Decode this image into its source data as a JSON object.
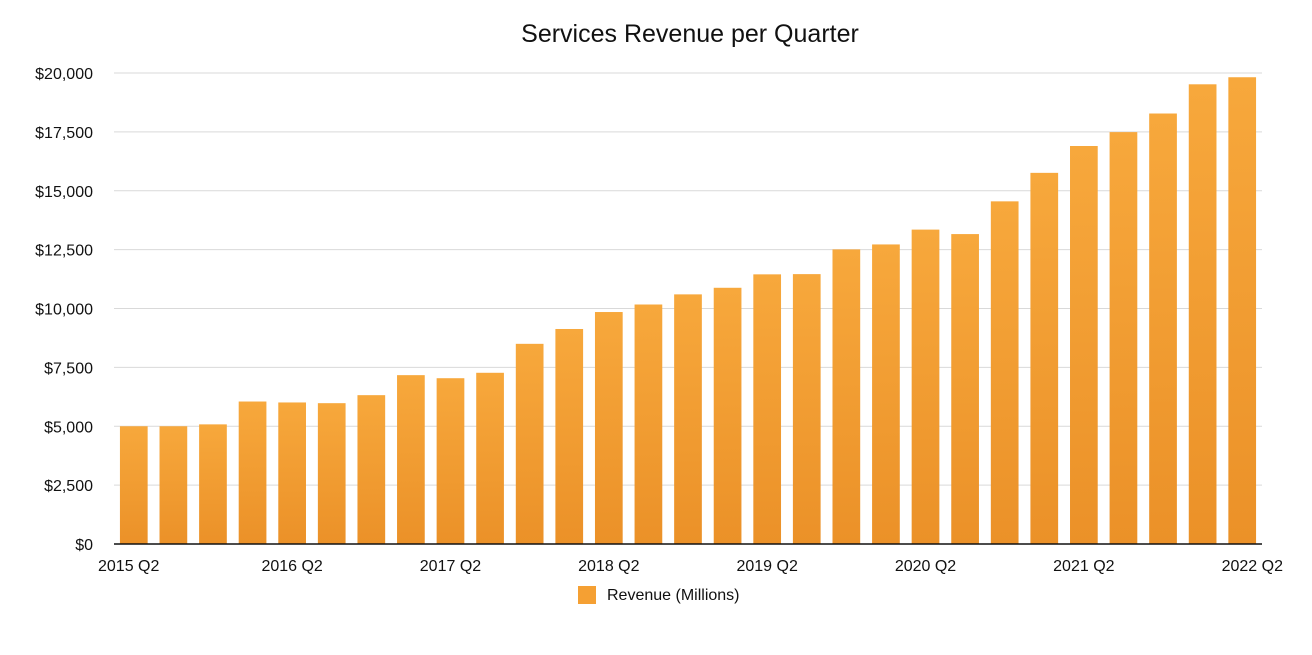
{
  "chart_data": {
    "type": "bar",
    "title": "Services Revenue per Quarter",
    "xlabel": "",
    "ylabel": "",
    "ylim": [
      0,
      20000
    ],
    "yticks": [
      0,
      2500,
      5000,
      7500,
      10000,
      12500,
      15000,
      17500,
      20000
    ],
    "ytick_labels": [
      "$0",
      "$2,500",
      "$5,000",
      "$7,500",
      "$10,000",
      "$12,500",
      "$15,000",
      "$17,500",
      "$20,000"
    ],
    "categories": [
      "2015 Q2",
      "2015 Q3",
      "2015 Q4",
      "2016 Q1",
      "2016 Q2",
      "2016 Q3",
      "2016 Q4",
      "2017 Q1",
      "2017 Q2",
      "2017 Q3",
      "2017 Q4",
      "2018 Q1",
      "2018 Q2",
      "2018 Q3",
      "2018 Q4",
      "2019 Q1",
      "2019 Q2",
      "2019 Q3",
      "2019 Q4",
      "2020 Q1",
      "2020 Q2",
      "2020 Q3",
      "2020 Q4",
      "2021 Q1",
      "2021 Q2",
      "2021 Q3",
      "2021 Q4",
      "2022 Q1",
      "2022 Q2"
    ],
    "visible_xtick_labels": [
      "2015 Q2",
      "2016 Q2",
      "2017 Q2",
      "2018 Q2",
      "2019 Q2",
      "2020 Q2",
      "2021 Q2",
      "2022 Q2"
    ],
    "series": [
      {
        "name": "Revenue (Millions)",
        "color": "#F5A033",
        "values": [
          5000,
          5000,
          5080,
          6050,
          6010,
          5980,
          6320,
          7170,
          7040,
          7270,
          8500,
          9130,
          9850,
          10170,
          10600,
          10880,
          11450,
          11460,
          12510,
          12720,
          13350,
          13160,
          14550,
          15760,
          16900,
          17490,
          18280,
          19520,
          19820
        ]
      }
    ],
    "grid": true,
    "legend": "bottom-center"
  }
}
